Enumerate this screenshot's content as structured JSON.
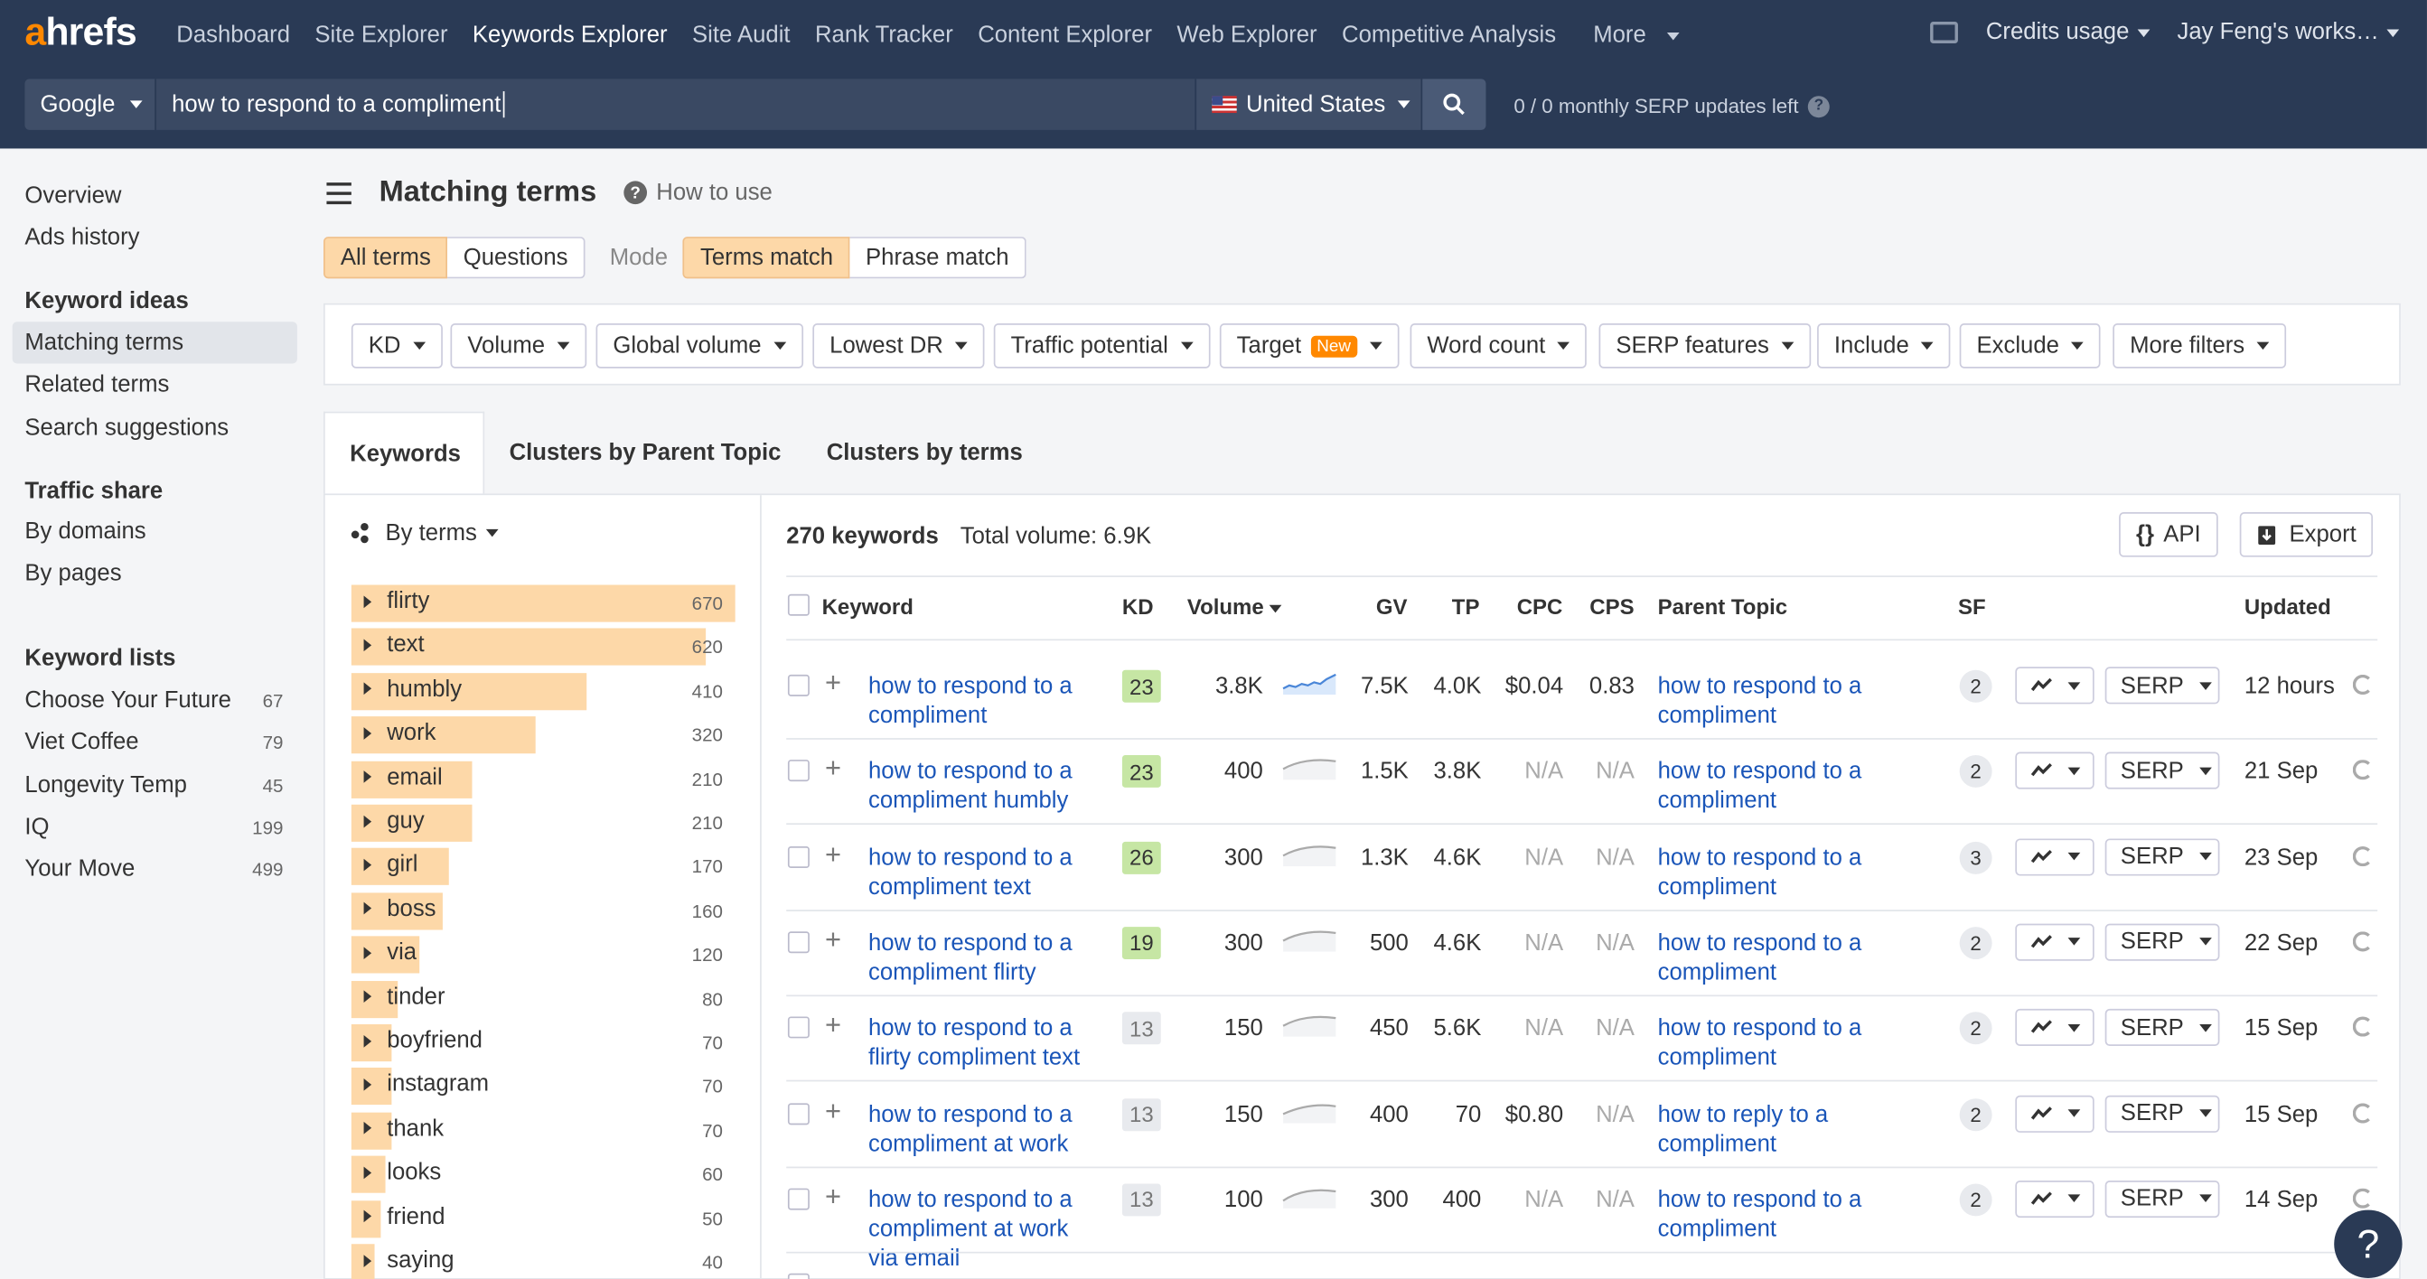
{
  "nav": {
    "logo": "ahrefs",
    "items": [
      "Dashboard",
      "Site Explorer",
      "Keywords Explorer",
      "Site Audit",
      "Rank Tracker",
      "Content Explorer",
      "Web Explorer",
      "Competitive Analysis",
      "More"
    ],
    "active": "Keywords Explorer",
    "credits": "Credits usage",
    "workspace": "Jay Feng's works…"
  },
  "search": {
    "engine": "Google",
    "query": "how to respond to a compliment",
    "country": "United States",
    "serp_updates": "0  /  0  monthly SERP updates left"
  },
  "sidebar": {
    "top": [
      "Overview",
      "Ads history"
    ],
    "sections": [
      {
        "title": "Keyword ideas",
        "items": [
          "Matching terms",
          "Related terms",
          "Search suggestions"
        ]
      },
      {
        "title": "Traffic share",
        "items": [
          "By domains",
          "By pages"
        ]
      },
      {
        "title": "Keyword lists",
        "items": [
          "Choose Your Future",
          "Viet Coffee",
          "Longevity Temp",
          "IQ",
          "Your Move"
        ],
        "counts": [
          "67",
          "79",
          "45",
          "199",
          "499"
        ]
      }
    ],
    "active": "Matching terms"
  },
  "page": {
    "title": "Matching terms",
    "how_to_use": "How to use",
    "term_tabs": [
      "All terms",
      "Questions"
    ],
    "mode_label": "Mode",
    "mode_tabs": [
      "Terms match",
      "Phrase match"
    ]
  },
  "filters": [
    "KD",
    "Volume",
    "Global volume",
    "Lowest DR",
    "Traffic potential",
    "Target",
    "Word count",
    "SERP features",
    "Include",
    "Exclude",
    "More filters"
  ],
  "filter_badge": "New",
  "panel_tabs": [
    "Keywords",
    "Clusters by Parent Topic",
    "Clusters by terms"
  ],
  "by_terms": "By terms",
  "terms": [
    {
      "term": "flirty",
      "count": "670",
      "frac": 1.0
    },
    {
      "term": "text",
      "count": "620",
      "frac": 0.925
    },
    {
      "term": "humbly",
      "count": "410",
      "frac": 0.612
    },
    {
      "term": "work",
      "count": "320",
      "frac": 0.478
    },
    {
      "term": "email",
      "count": "210",
      "frac": 0.313
    },
    {
      "term": "guy",
      "count": "210",
      "frac": 0.313
    },
    {
      "term": "girl",
      "count": "170",
      "frac": 0.254
    },
    {
      "term": "boss",
      "count": "160",
      "frac": 0.239
    },
    {
      "term": "via",
      "count": "120",
      "frac": 0.179
    },
    {
      "term": "tinder",
      "count": "80",
      "frac": 0.119
    },
    {
      "term": "boyfriend",
      "count": "70",
      "frac": 0.104
    },
    {
      "term": "instagram",
      "count": "70",
      "frac": 0.104
    },
    {
      "term": "thank",
      "count": "70",
      "frac": 0.104
    },
    {
      "term": "looks",
      "count": "60",
      "frac": 0.09
    },
    {
      "term": "friend",
      "count": "50",
      "frac": 0.075
    },
    {
      "term": "saying",
      "count": "40",
      "frac": 0.06
    }
  ],
  "summary": {
    "count": "270 keywords",
    "volume": "Total volume: 6.9K"
  },
  "actions": {
    "api": "API",
    "export": "Export"
  },
  "columns": [
    "Keyword",
    "KD",
    "Volume",
    "GV",
    "TP",
    "CPC",
    "CPS",
    "Parent Topic",
    "SF",
    "Updated"
  ],
  "rows": [
    {
      "kw": "how to respond to a compliment",
      "kd": "23",
      "vol": "3.8K",
      "gv": "7.5K",
      "tp": "4.0K",
      "cpc": "$0.04",
      "cps": "0.83",
      "pt": "how to respond to a compliment",
      "sf": "2",
      "serp": "SERP",
      "upd": "12 hours"
    },
    {
      "kw": "how to respond to a compliment humbly",
      "kd": "23",
      "vol": "400",
      "gv": "1.5K",
      "tp": "3.8K",
      "cpc": "N/A",
      "cps": "N/A",
      "pt": "how to respond to a compliment",
      "sf": "2",
      "serp": "SERP",
      "upd": "21 Sep"
    },
    {
      "kw": "how to respond to a compliment text",
      "kd": "26",
      "vol": "300",
      "gv": "1.3K",
      "tp": "4.6K",
      "cpc": "N/A",
      "cps": "N/A",
      "pt": "how to respond to a compliment",
      "sf": "3",
      "serp": "SERP",
      "upd": "23 Sep"
    },
    {
      "kw": "how to respond to a compliment flirty",
      "kd": "19",
      "vol": "300",
      "gv": "500",
      "tp": "4.6K",
      "cpc": "N/A",
      "cps": "N/A",
      "pt": "how to respond to a compliment",
      "sf": "2",
      "serp": "SERP",
      "upd": "22 Sep"
    },
    {
      "kw": "how to respond to a flirty compliment text",
      "kd": "13",
      "vol": "150",
      "gv": "450",
      "tp": "5.6K",
      "cpc": "N/A",
      "cps": "N/A",
      "pt": "how to respond to a compliment",
      "sf": "2",
      "serp": "SERP",
      "upd": "15 Sep"
    },
    {
      "kw": "how to respond to a compliment at work",
      "kd": "13",
      "vol": "150",
      "gv": "400",
      "tp": "70",
      "cpc": "$0.80",
      "cps": "N/A",
      "pt": "how to reply to a compliment",
      "sf": "2",
      "serp": "SERP",
      "upd": "15 Sep"
    },
    {
      "kw": "how to respond to a compliment at work via email",
      "kd": "13",
      "vol": "100",
      "gv": "300",
      "tp": "400",
      "cpc": "N/A",
      "cps": "N/A",
      "pt": "how to respond to a compliment",
      "sf": "2",
      "serp": "SERP",
      "upd": "14 Sep"
    }
  ],
  "kd_colors": {
    "green": "#c6e6a4",
    "lightgray": "#e8eaee"
  },
  "help": "?"
}
